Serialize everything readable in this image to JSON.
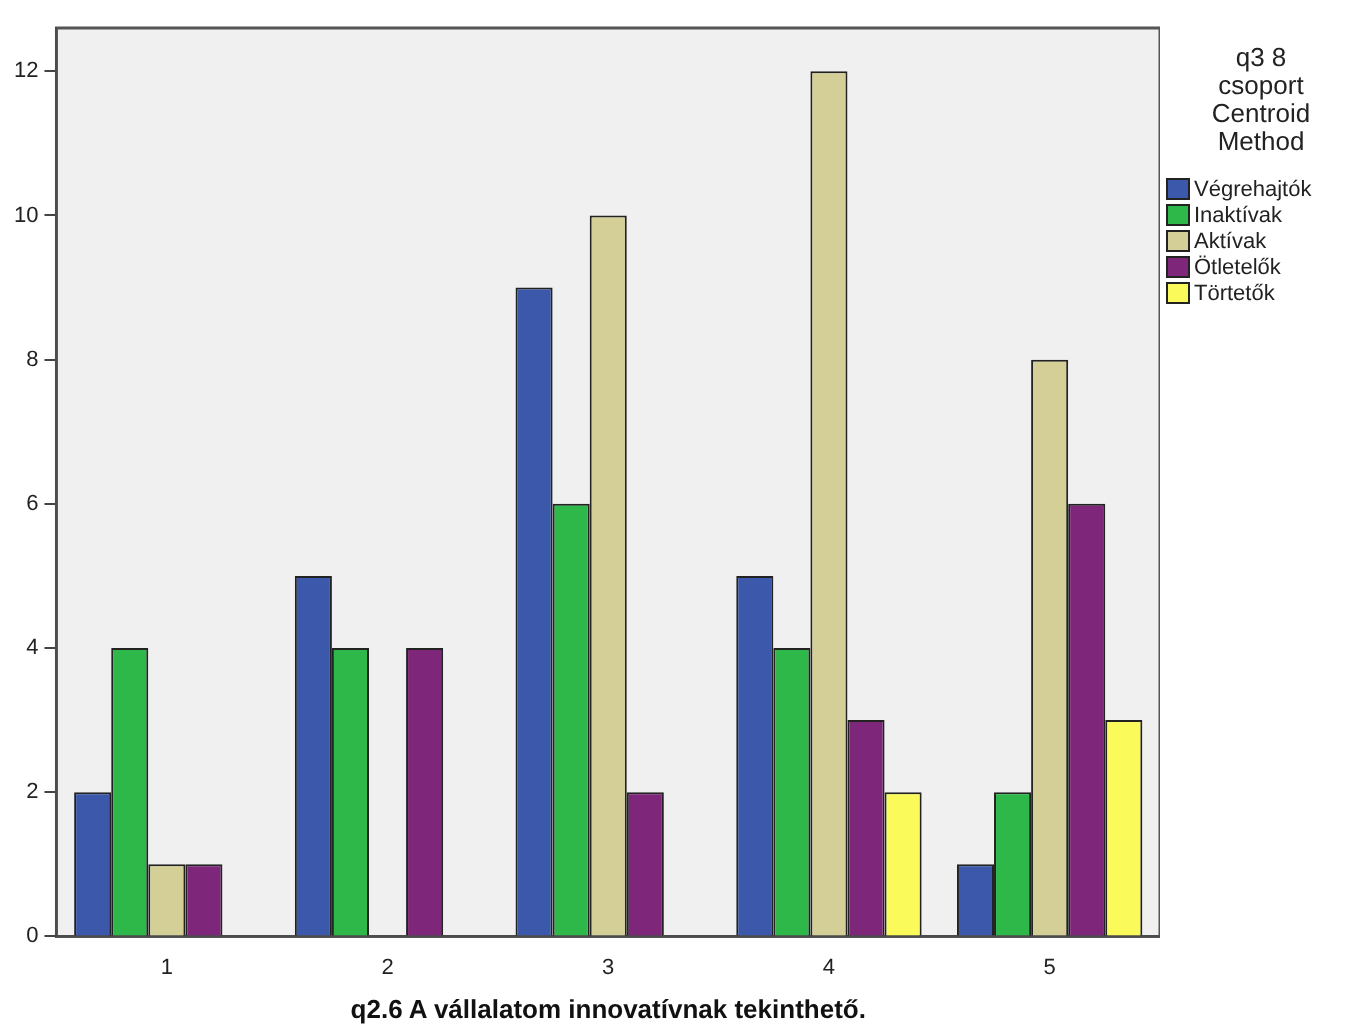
{
  "chart_data": {
    "type": "bar",
    "xlabel": "q2.6 A vállalatom innovatívnak tekinthető.",
    "legend_title": "q3 8\ncsoport\nCentroid\nMethod",
    "categories": [
      "1",
      "2",
      "3",
      "4",
      "5"
    ],
    "ylim": [
      0,
      12.6
    ],
    "yticks": [
      0,
      2,
      4,
      6,
      8,
      10,
      12
    ],
    "grid": false,
    "legend": "right",
    "series": [
      {
        "name": "Végrehajtók",
        "color": "#3c58ab",
        "values": [
          2,
          5,
          9,
          5,
          1
        ]
      },
      {
        "name": "Inaktívak",
        "color": "#2eb84a",
        "values": [
          4,
          4,
          6,
          4,
          2
        ]
      },
      {
        "name": "Aktívak",
        "color": "#d4cf96",
        "values": [
          1,
          null,
          10,
          12,
          8
        ]
      },
      {
        "name": "Ötletelők",
        "color": "#7e2679",
        "values": [
          1,
          4,
          2,
          3,
          6
        ]
      },
      {
        "name": "Törtetők",
        "color": "#fafa5a",
        "values": [
          null,
          null,
          null,
          2,
          3
        ]
      }
    ]
  }
}
